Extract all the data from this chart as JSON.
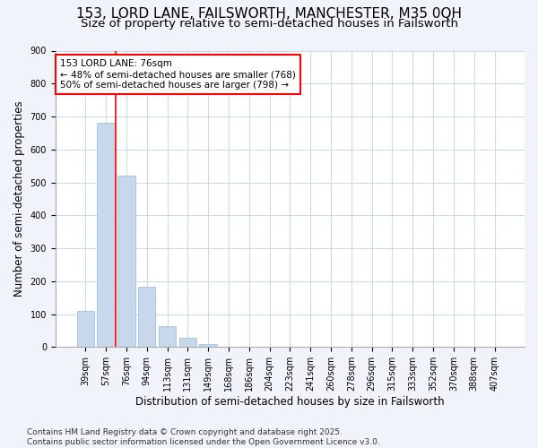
{
  "title": "153, LORD LANE, FAILSWORTH, MANCHESTER, M35 0QH",
  "subtitle": "Size of property relative to semi-detached houses in Failsworth",
  "xlabel": "Distribution of semi-detached houses by size in Failsworth",
  "ylabel": "Number of semi-detached properties",
  "categories": [
    "39sqm",
    "57sqm",
    "76sqm",
    "94sqm",
    "113sqm",
    "131sqm",
    "149sqm",
    "168sqm",
    "186sqm",
    "204sqm",
    "223sqm",
    "241sqm",
    "260sqm",
    "278sqm",
    "296sqm",
    "315sqm",
    "333sqm",
    "352sqm",
    "370sqm",
    "388sqm",
    "407sqm"
  ],
  "values": [
    110,
    680,
    520,
    182,
    63,
    28,
    10,
    0,
    0,
    0,
    0,
    0,
    0,
    0,
    0,
    0,
    0,
    0,
    0,
    0,
    0
  ],
  "bar_color": "#c8d8ec",
  "bar_edge_color": "#aec6de",
  "red_line_index": 2,
  "annotation_text": "153 LORD LANE: 76sqm\n← 48% of semi-detached houses are smaller (768)\n50% of semi-detached houses are larger (798) →",
  "background_color": "#f0f4fa",
  "plot_background": "#ffffff",
  "grid_color": "#c8d8ec",
  "footer": "Contains HM Land Registry data © Crown copyright and database right 2025.\nContains public sector information licensed under the Open Government Licence v3.0.",
  "ylim": [
    0,
    900
  ],
  "yticks": [
    0,
    100,
    200,
    300,
    400,
    500,
    600,
    700,
    800,
    900
  ],
  "title_fontsize": 11,
  "subtitle_fontsize": 9.5,
  "axis_label_fontsize": 8.5,
  "tick_fontsize": 7,
  "footer_fontsize": 6.5
}
